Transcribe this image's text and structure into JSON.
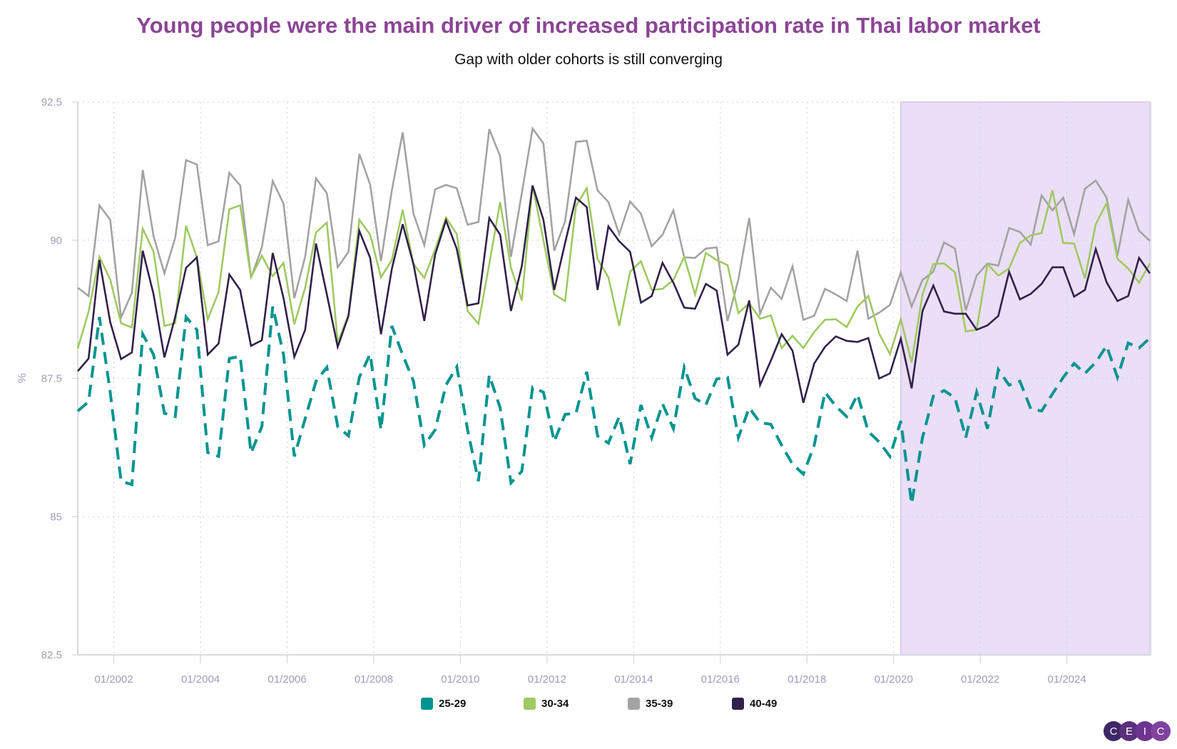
{
  "chart_data": {
    "type": "line",
    "title": "Young people were the main driver of increased participation rate in Thai labor market",
    "subtitle": "Gap with older cohorts is still converging",
    "ylabel": "%",
    "xlabel": "",
    "ylim": [
      82.5,
      92.5
    ],
    "yticks": [
      "82.5",
      "85",
      "87.5",
      "90",
      "92.5"
    ],
    "xlim": [
      "03/2001",
      "12/2025"
    ],
    "xticks": [
      "01/2002",
      "01/2004",
      "01/2006",
      "01/2008",
      "01/2010",
      "01/2012",
      "01/2014",
      "01/2016",
      "01/2018",
      "01/2020",
      "01/2022",
      "01/2024"
    ],
    "grid": "dotted",
    "legend_position": "bottom",
    "highlight": {
      "from": "03/2020",
      "to": "12/2025",
      "color": "#ebdff7"
    },
    "x": [
      "03/2001",
      "06/2001",
      "09/2001",
      "12/2001",
      "03/2002",
      "06/2002",
      "09/2002",
      "12/2002",
      "03/2003",
      "06/2003",
      "09/2003",
      "12/2003",
      "03/2004",
      "06/2004",
      "09/2004",
      "12/2004",
      "03/2005",
      "06/2005",
      "09/2005",
      "12/2005",
      "03/2006",
      "06/2006",
      "09/2006",
      "12/2006",
      "03/2007",
      "06/2007",
      "09/2007",
      "12/2007",
      "03/2008",
      "06/2008",
      "09/2008",
      "12/2008",
      "03/2009",
      "06/2009",
      "09/2009",
      "12/2009",
      "03/2010",
      "06/2010",
      "09/2010",
      "12/2010",
      "03/2011",
      "06/2011",
      "09/2011",
      "12/2011",
      "03/2012",
      "06/2012",
      "09/2012",
      "12/2012",
      "03/2013",
      "06/2013",
      "09/2013",
      "12/2013",
      "03/2014",
      "06/2014",
      "09/2014",
      "12/2014",
      "03/2015",
      "06/2015",
      "09/2015",
      "12/2015",
      "03/2016",
      "06/2016",
      "09/2016",
      "12/2016",
      "03/2017",
      "06/2017",
      "09/2017",
      "12/2017",
      "03/2018",
      "06/2018",
      "09/2018",
      "12/2018",
      "03/2019",
      "06/2019",
      "09/2019",
      "12/2019",
      "03/2020",
      "06/2020",
      "09/2020",
      "12/2020",
      "03/2021",
      "06/2021",
      "09/2021",
      "12/2021",
      "03/2022",
      "06/2022",
      "09/2022",
      "12/2022",
      "03/2023",
      "06/2023",
      "09/2023",
      "12/2023",
      "03/2024",
      "06/2024",
      "09/2024",
      "12/2024",
      "03/2025",
      "06/2025",
      "09/2025",
      "12/2025"
    ],
    "series": [
      {
        "name": "25-29",
        "color": "#009490",
        "dashed": true,
        "values": [
          86.91,
          87.08,
          88.61,
          87.25,
          85.64,
          85.58,
          88.3,
          87.93,
          86.87,
          86.81,
          88.61,
          88.38,
          86.16,
          86.09,
          87.86,
          87.9,
          86.15,
          86.63,
          88.8,
          87.93,
          86.09,
          86.77,
          87.45,
          87.7,
          86.63,
          86.46,
          87.52,
          87.94,
          86.57,
          88.45,
          87.93,
          87.45,
          86.29,
          86.57,
          87.38,
          87.71,
          86.57,
          85.64,
          87.56,
          86.97,
          85.61,
          85.82,
          87.34,
          87.25,
          86.36,
          86.85,
          86.87,
          87.62,
          86.46,
          86.33,
          86.81,
          85.95,
          87.02,
          86.43,
          87.04,
          86.59,
          87.7,
          87.14,
          87.02,
          87.49,
          87.52,
          86.43,
          86.97,
          86.7,
          86.67,
          86.29,
          85.95,
          85.77,
          86.29,
          87.25,
          87.0,
          86.81,
          87.21,
          86.54,
          86.35,
          86.09,
          86.73,
          85.23,
          86.43,
          87.18,
          87.28,
          87.15,
          86.43,
          87.25,
          86.59,
          87.66,
          87.38,
          87.45,
          86.95,
          86.91,
          87.22,
          87.52,
          87.77,
          87.59,
          87.79,
          88.09,
          87.52,
          88.14,
          88.05,
          88.23
        ]
      },
      {
        "name": "30-34",
        "color": "#9fc963",
        "dashed": false,
        "values": [
          88.04,
          88.71,
          89.7,
          89.29,
          88.5,
          88.42,
          90.21,
          89.79,
          88.45,
          88.5,
          90.26,
          89.69,
          88.57,
          89.06,
          90.56,
          90.63,
          89.33,
          89.72,
          89.35,
          89.59,
          88.48,
          89.14,
          90.14,
          90.32,
          88.15,
          88.65,
          90.37,
          90.1,
          89.33,
          89.64,
          90.55,
          89.57,
          89.32,
          89.83,
          90.41,
          90.11,
          88.72,
          88.49,
          89.57,
          90.69,
          89.5,
          88.91,
          90.99,
          90.0,
          89.02,
          88.9,
          90.62,
          90.94,
          89.66,
          89.33,
          88.45,
          89.43,
          89.62,
          89.1,
          89.12,
          89.28,
          89.7,
          89.02,
          89.77,
          89.64,
          89.55,
          88.68,
          88.86,
          88.58,
          88.64,
          88.05,
          88.27,
          88.05,
          88.34,
          88.56,
          88.57,
          88.43,
          88.8,
          88.99,
          88.31,
          87.94,
          88.57,
          87.79,
          89.02,
          89.57,
          89.58,
          89.42,
          88.35,
          88.38,
          89.57,
          89.36,
          89.49,
          89.95,
          90.09,
          90.13,
          90.9,
          89.95,
          89.94,
          89.31,
          90.29,
          90.67,
          89.66,
          89.49,
          89.23,
          89.58
        ]
      },
      {
        "name": "35-39",
        "color": "#a3a3a1",
        "dashed": false,
        "values": [
          89.14,
          88.99,
          90.63,
          90.37,
          88.6,
          89.05,
          91.27,
          90.07,
          89.4,
          90.04,
          91.45,
          91.37,
          89.91,
          89.98,
          91.22,
          90.99,
          89.32,
          89.87,
          91.07,
          90.66,
          88.95,
          89.7,
          91.12,
          90.85,
          89.51,
          89.79,
          91.56,
          91.01,
          89.62,
          90.9,
          91.95,
          90.48,
          89.91,
          90.92,
          91.0,
          90.94,
          90.28,
          90.33,
          92.01,
          91.52,
          89.7,
          90.85,
          92.02,
          91.75,
          89.81,
          90.34,
          91.78,
          91.8,
          90.9,
          90.69,
          90.11,
          90.7,
          90.48,
          89.89,
          90.1,
          90.54,
          89.69,
          89.68,
          89.85,
          89.87,
          88.54,
          89.29,
          90.4,
          88.67,
          89.14,
          88.94,
          89.53,
          88.56,
          88.63,
          89.12,
          89.02,
          88.9,
          89.81,
          88.58,
          88.69,
          88.83,
          89.42,
          88.8,
          89.28,
          89.43,
          89.96,
          89.85,
          88.73,
          89.36,
          89.58,
          89.54,
          90.22,
          90.15,
          89.92,
          90.81,
          90.54,
          90.77,
          90.11,
          90.93,
          91.08,
          90.77,
          89.72,
          90.73,
          90.17,
          89.99
        ]
      },
      {
        "name": "40-49",
        "color": "#30214a",
        "dashed": false,
        "values": [
          87.63,
          87.86,
          89.64,
          88.52,
          87.85,
          87.97,
          89.81,
          89.02,
          87.88,
          88.61,
          89.5,
          89.69,
          87.93,
          88.13,
          89.38,
          89.1,
          88.09,
          88.19,
          89.77,
          88.95,
          87.89,
          88.38,
          89.94,
          89.02,
          88.07,
          88.63,
          90.17,
          89.68,
          88.3,
          89.48,
          90.29,
          89.57,
          88.54,
          89.74,
          90.36,
          89.84,
          88.82,
          88.86,
          90.4,
          90.1,
          88.72,
          89.53,
          90.99,
          90.37,
          89.1,
          89.95,
          90.77,
          90.6,
          89.1,
          90.25,
          89.98,
          89.79,
          88.87,
          88.99,
          89.59,
          89.23,
          88.78,
          88.76,
          89.21,
          89.09,
          87.93,
          88.11,
          88.91,
          87.38,
          87.82,
          88.3,
          88.0,
          87.06,
          87.77,
          88.07,
          88.26,
          88.18,
          88.16,
          88.23,
          87.5,
          87.59,
          88.22,
          87.32,
          88.72,
          89.18,
          88.71,
          88.67,
          88.67,
          88.38,
          88.46,
          88.63,
          89.43,
          88.93,
          89.03,
          89.21,
          89.51,
          89.51,
          88.98,
          89.1,
          89.84,
          89.24,
          88.9,
          88.99,
          89.68,
          89.4
        ]
      }
    ]
  },
  "brand": {
    "logo_letters": [
      "C",
      "E",
      "I",
      "C"
    ],
    "logo_colors": [
      "#3d2766",
      "#5a2f7c",
      "#6e3590",
      "#8142a0"
    ]
  }
}
